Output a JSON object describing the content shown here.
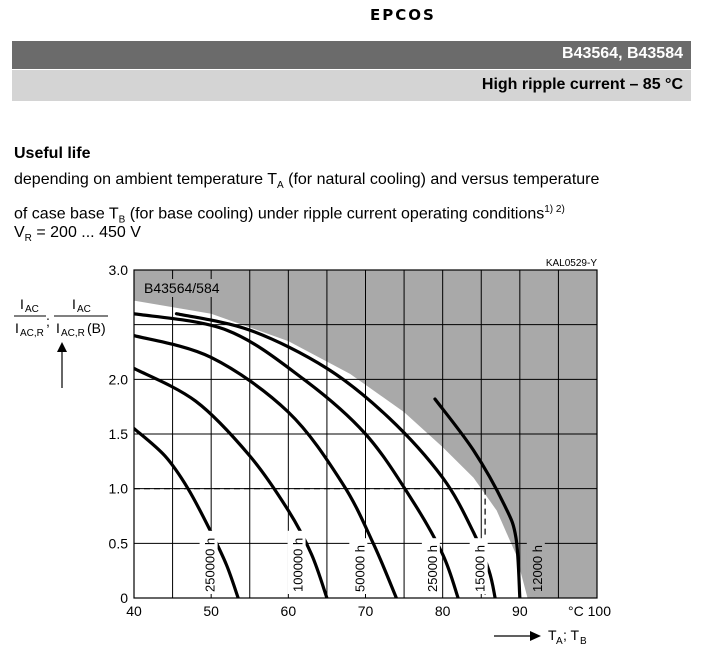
{
  "header": {
    "logo": "EPCOS",
    "part_numbers": "B43564, B43584",
    "subtitle": "High ripple current – 85 °C"
  },
  "content": {
    "heading": "Useful life",
    "line1_a": "depending on ambient temperature T",
    "line1_sub": "A",
    "line1_b": " (for natural cooling) and versus temperature",
    "line2_a": "of case base T",
    "line2_sub": "B",
    "line2_b": " (for base cooling) under ripple current operating conditions",
    "line2_sup": "1) 2)",
    "voltage_a": "V",
    "voltage_sub": "R",
    "voltage_b": " = 200 ... 450 V"
  },
  "chart_data": {
    "type": "line",
    "code": "KAL0529-Y",
    "series_label": "B43564/584",
    "xlim": [
      40,
      100
    ],
    "ylim": [
      0,
      3.0
    ],
    "x_ticks": [
      "40",
      "50",
      "60",
      "70",
      "80",
      "90",
      "°C 100"
    ],
    "y_ticks": [
      "0",
      "0.5",
      "1.0",
      "1.5",
      "2.0",
      "3.0"
    ],
    "y_tick_values": [
      0,
      0.5,
      1.0,
      1.5,
      2.0,
      3.0
    ],
    "x_tick_values": [
      40,
      50,
      60,
      70,
      80,
      90,
      100
    ],
    "x_axis_label": "T_A; T_B",
    "y_axis_label": "I_AC / I_AC,R ; I_AC / I_AC,R(B)",
    "reference_line": {
      "y": 1.0,
      "x_end": 85.5,
      "style": "dashed"
    },
    "grid": true,
    "series": [
      {
        "name": "250000 h",
        "points": [
          [
            40,
            1.55
          ],
          [
            44,
            1.3
          ],
          [
            47,
            1.0
          ],
          [
            50,
            0.6
          ],
          [
            52,
            0.3
          ],
          [
            53.5,
            0
          ]
        ]
      },
      {
        "name": "100000 h",
        "points": [
          [
            40,
            2.1
          ],
          [
            48,
            1.8
          ],
          [
            55,
            1.3
          ],
          [
            60,
            0.8
          ],
          [
            63,
            0.4
          ],
          [
            65,
            0
          ]
        ]
      },
      {
        "name": "50000 h",
        "points": [
          [
            40,
            2.4
          ],
          [
            50,
            2.2
          ],
          [
            60,
            1.7
          ],
          [
            67,
            1.05
          ],
          [
            71,
            0.5
          ],
          [
            74,
            0
          ]
        ]
      },
      {
        "name": "25000 h",
        "points": [
          [
            40,
            2.6
          ],
          [
            52,
            2.45
          ],
          [
            62,
            2.0
          ],
          [
            70,
            1.5
          ],
          [
            76,
            0.9
          ],
          [
            80,
            0.4
          ],
          [
            82,
            0
          ]
        ]
      },
      {
        "name": "15000 h",
        "points": [
          [
            45.5,
            2.6
          ],
          [
            55,
            2.45
          ],
          [
            65,
            2.1
          ],
          [
            73,
            1.65
          ],
          [
            80,
            1.1
          ],
          [
            84,
            0.6
          ],
          [
            86,
            0.25
          ],
          [
            86.8,
            0
          ]
        ]
      },
      {
        "name": "12000 h",
        "points": [
          [
            79,
            1.82
          ],
          [
            84,
            1.35
          ],
          [
            88,
            0.85
          ],
          [
            89.5,
            0.55
          ],
          [
            90,
            0
          ]
        ]
      }
    ],
    "shaded_region": "top-right boundary (gray)"
  }
}
